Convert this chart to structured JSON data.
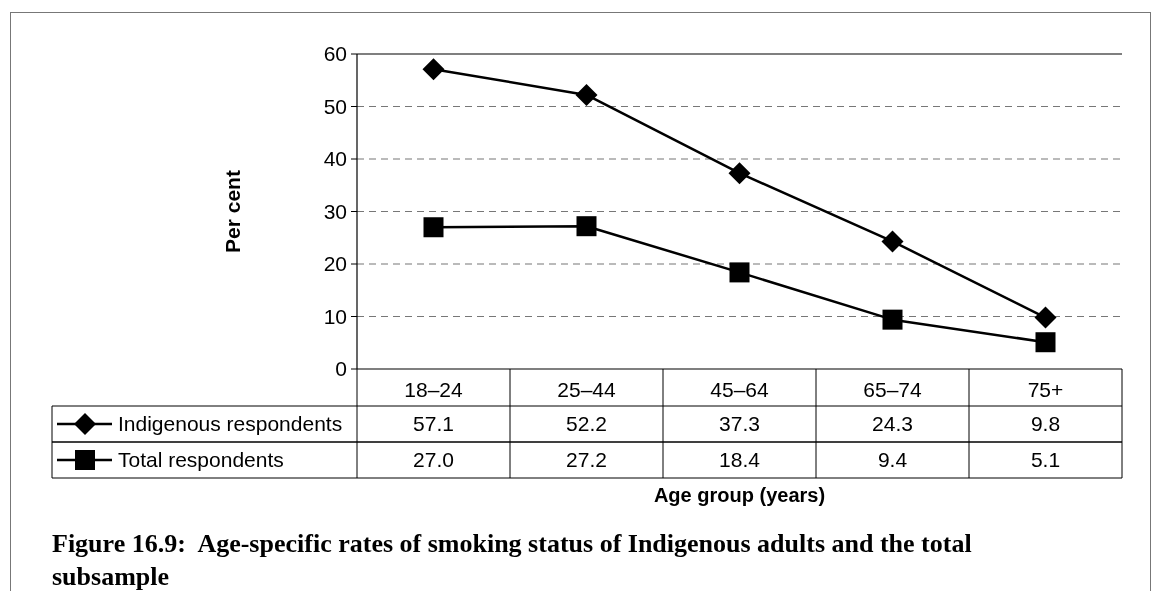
{
  "chart_data": {
    "type": "line",
    "title": "Figure 16.9:  Age-specific rates of smoking status of Indigenous adults and the total subsample",
    "xlabel": "Age group (years)",
    "ylabel": "Per cent",
    "categories": [
      "18–24",
      "25–44",
      "45–64",
      "65–74",
      "75+"
    ],
    "series": [
      {
        "name": "Indigenous respondents",
        "color": "#000000",
        "marker": "diamond",
        "values": [
          57.1,
          52.2,
          37.3,
          24.3,
          9.8
        ],
        "value_labels": [
          "57.1",
          "52.2",
          "37.3",
          "24.3",
          "9.8"
        ]
      },
      {
        "name": "Total respondents",
        "color": "#000000",
        "marker": "square",
        "values": [
          27.0,
          27.2,
          18.4,
          9.4,
          5.1
        ],
        "value_labels": [
          "27.0",
          "27.2",
          "18.4",
          "9.4",
          "5.1"
        ]
      }
    ],
    "ylim": [
      0,
      60
    ],
    "yticks": [
      0,
      10,
      20,
      30,
      40,
      50,
      60
    ],
    "grid": "y",
    "legend": "bottom",
    "line_style": "solid"
  }
}
